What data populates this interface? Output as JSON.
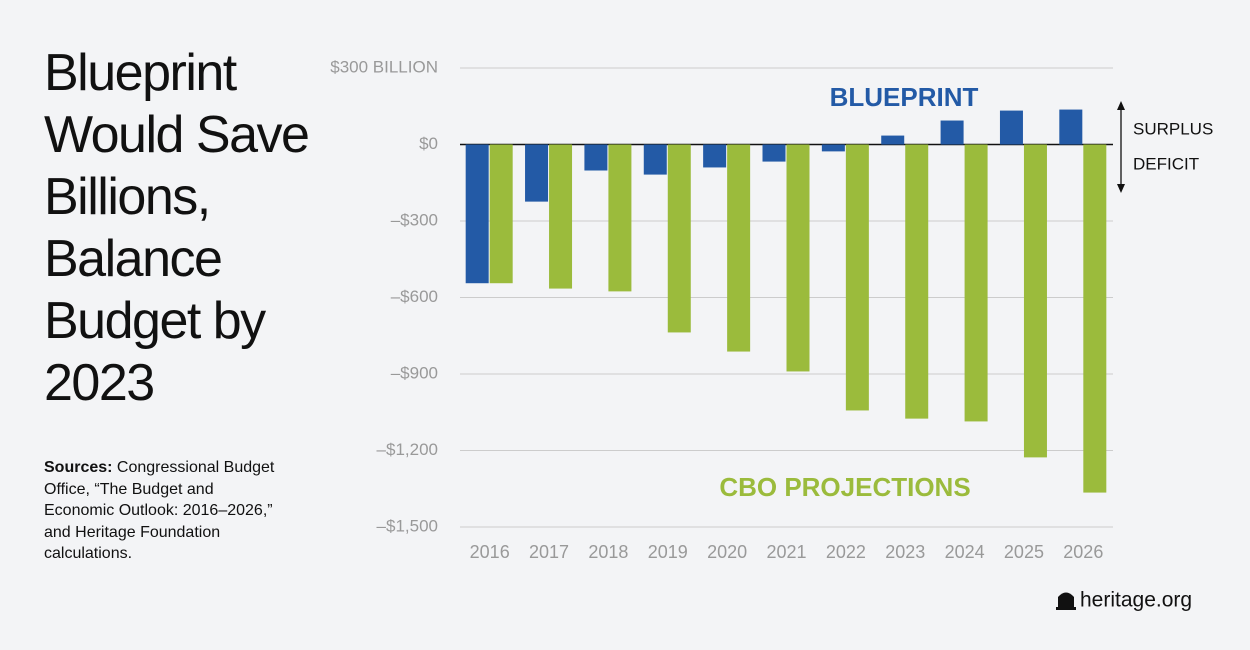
{
  "chart_data": {
    "type": "bar",
    "title": "Blueprint Would Save Billions, Balance Budget by 2023",
    "sources_label": "Sources:",
    "sources_text": "Congressional Budget Office, “The Budget and Economic Outlook: 2016–2026,” and Heritage Foundation calculations.",
    "categories": [
      "2016",
      "2017",
      "2018",
      "2019",
      "2020",
      "2021",
      "2022",
      "2023",
      "2024",
      "2025",
      "2026"
    ],
    "series": [
      {
        "name": "BLUEPRINT",
        "color": "#235aa6",
        "values": [
          -544,
          -224,
          -102,
          -118,
          -90,
          -67,
          -27,
          35,
          94,
          133,
          137
        ]
      },
      {
        "name": "CBO PROJECTIONS",
        "color": "#9bbb3c",
        "values": [
          -544,
          -565,
          -576,
          -737,
          -812,
          -890,
          -1043,
          -1075,
          -1086,
          -1227,
          -1365
        ]
      }
    ],
    "ylim": [
      -1500,
      300
    ],
    "yticks": [
      {
        "value": 300,
        "label": "$300 BILLION"
      },
      {
        "value": 0,
        "label": "$0"
      },
      {
        "value": -300,
        "label": "–$300"
      },
      {
        "value": -600,
        "label": "–$600"
      },
      {
        "value": -900,
        "label": "–$900"
      },
      {
        "value": -1200,
        "label": "–$1,200"
      },
      {
        "value": -1500,
        "label": "–$1,500"
      }
    ],
    "grid": true,
    "annotations": {
      "surplus": "SURPLUS",
      "deficit": "DEFICIT"
    },
    "footer": "heritage.org"
  }
}
